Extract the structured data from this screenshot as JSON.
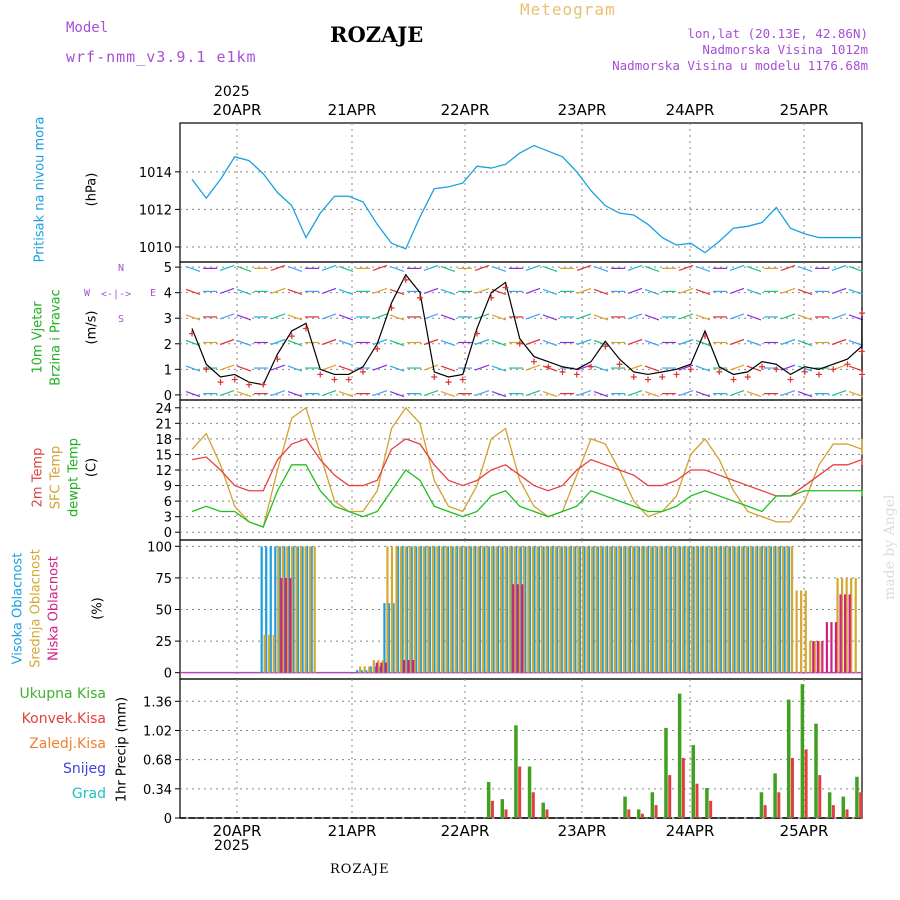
{
  "header": {
    "model_label": "Model",
    "model_name": "wrf-nmm_v3.9.1 e1km",
    "station": "ROZAJE",
    "product": "Meteogram",
    "lonlat": "lon,lat (20.13E, 42.86N)",
    "elevation": "Nadmorska Visina 1012m",
    "model_elevation": "Nadmorska Visina u modelu 1176.68m",
    "watermark": "made by Angel",
    "footer_station": "ROZAJE"
  },
  "dates": {
    "year": "2025",
    "labels": [
      "20APR",
      "21APR",
      "22APR",
      "23APR",
      "24APR",
      "25APR"
    ]
  },
  "colors": {
    "pressure": "#1aa0e0",
    "t2m": "#e84040",
    "sfc": "#d4a030",
    "dew": "#20c020",
    "high_cloud": "#1a9ee0",
    "mid_cloud": "#d4a830",
    "low_cloud": "#d02080",
    "total_precip": "#40a020",
    "conv_precip": "#e04040",
    "precip_bar": "#8a7a20",
    "wind_obs": "#000000",
    "wind_marks": "#e03030",
    "grid": "#888888"
  },
  "panels": {
    "pressure": {
      "label": "Pritisak na nivou mora",
      "unit": "(hPa)"
    },
    "wind": {
      "label1": "10m Vjetar",
      "label2": "Brzina i Pravac",
      "unit": "(m/s)",
      "compass": {
        "n": "N",
        "s": "S",
        "w": "W",
        "e": "E"
      }
    },
    "temp": {
      "label1": "2m Temp",
      "label2": "SFC Temp",
      "label3": "dewpt Temp",
      "unit": "(C)"
    },
    "cloud": {
      "label1": "Visoka Oblacnost",
      "label2": "Srednja Oblacnost",
      "label3": "Niska Oblacnost",
      "unit": "(%)"
    },
    "precip": {
      "legend": [
        "Ukupna Kisa",
        "Konvek.Kisa",
        "Zaledj.Kisa",
        "Snijeg",
        "Grad"
      ],
      "legend_colors": [
        "#40b030",
        "#e04040",
        "#f08030",
        "#4040e0",
        "#20c0c0"
      ],
      "unit": "1hr Precip (mm)"
    }
  },
  "chart_data": [
    {
      "type": "line",
      "title": "Pritisak na nivou mora",
      "ylabel": "(hPa)",
      "ylim": [
        1009.2,
        1016.6
      ],
      "yticks": [
        1010,
        1012,
        1014
      ],
      "x_hours": [
        0,
        3,
        6,
        9,
        12,
        15,
        18,
        21,
        24,
        27,
        30,
        33,
        36,
        39,
        42,
        45,
        48,
        51,
        54,
        57,
        60,
        63,
        66,
        69,
        72,
        75,
        78,
        81,
        84,
        87,
        90,
        93,
        96,
        99,
        102,
        105,
        108,
        111,
        114,
        117,
        120,
        123,
        126,
        129,
        132,
        135,
        138,
        141,
        144,
        147
      ],
      "series": [
        {
          "values": [
            1013.6,
            1012.6,
            1013.6,
            1014.8,
            1014.6,
            1013.9,
            1012.9,
            1012.2,
            1010.5,
            1011.8,
            1012.7,
            1012.7,
            1012.4,
            1011.2,
            1010.2,
            1009.9,
            1011.6,
            1013.1,
            1013.2,
            1013.4,
            1014.3,
            1014.2,
            1014.4,
            1015.0,
            1015.4,
            1015.1,
            1014.8,
            1014.0,
            1013.0,
            1012.2,
            1011.8,
            1011.7,
            1011.2,
            1010.5,
            1010.1,
            1010.2,
            1009.7,
            1010.3,
            1011.0,
            1011.1,
            1011.3,
            1012.1,
            1011.0,
            1010.7,
            1010.5,
            1010.5,
            1010.5,
            1010.5,
            1010.5,
            1010.5
          ]
        }
      ]
    },
    {
      "type": "line",
      "title": "10m Vjetar Brzina i Pravac",
      "ylabel": "(m/s)",
      "ylim": [
        -0.2,
        5.2
      ],
      "yticks": [
        0,
        1,
        2,
        3,
        4,
        5
      ],
      "x_hours": [
        0,
        3,
        6,
        9,
        12,
        15,
        18,
        21,
        24,
        27,
        30,
        33,
        36,
        39,
        42,
        45,
        48,
        51,
        54,
        57,
        60,
        63,
        66,
        69,
        72,
        75,
        78,
        81,
        84,
        87,
        90,
        93,
        96,
        99,
        102,
        105,
        108,
        111,
        114,
        117,
        120,
        123,
        126,
        129,
        132,
        135,
        138,
        141,
        144,
        147
      ],
      "series": [
        {
          "values": [
            2.6,
            1.2,
            0.7,
            0.8,
            0.5,
            0.4,
            1.6,
            2.5,
            2.8,
            1.0,
            0.8,
            0.8,
            1.1,
            2.0,
            3.6,
            4.7,
            4.0,
            0.9,
            0.7,
            0.8,
            2.6,
            4.0,
            4.4,
            2.2,
            1.5,
            1.3,
            1.1,
            1.0,
            1.3,
            2.1,
            1.4,
            0.9,
            0.8,
            0.9,
            1.0,
            1.2,
            2.5,
            1.1,
            0.8,
            0.9,
            1.3,
            1.2,
            0.8,
            1.1,
            1.0,
            1.2,
            1.4,
            1.9,
            3.4,
            1.0
          ]
        }
      ]
    },
    {
      "type": "line",
      "title": "2m Temp / SFC Temp / dewpt Temp",
      "ylabel": "(C)",
      "ylim": [
        -1.5,
        25.5
      ],
      "yticks": [
        0,
        3,
        6,
        9,
        12,
        15,
        18,
        21,
        24
      ],
      "x_hours": [
        0,
        3,
        6,
        9,
        12,
        15,
        18,
        21,
        24,
        27,
        30,
        33,
        36,
        39,
        42,
        45,
        48,
        51,
        54,
        57,
        60,
        63,
        66,
        69,
        72,
        75,
        78,
        81,
        84,
        87,
        90,
        93,
        96,
        99,
        102,
        105,
        108,
        111,
        114,
        117,
        120,
        123,
        126,
        129,
        132,
        135,
        138,
        141,
        144,
        147
      ],
      "series": [
        {
          "name": "2m Temp",
          "values": [
            14,
            14.5,
            12,
            9,
            8,
            8,
            14,
            17,
            18,
            14,
            11,
            9,
            9,
            10,
            16,
            18,
            17,
            13,
            10,
            9,
            10,
            12,
            13,
            11,
            9,
            8,
            9,
            12,
            14,
            13,
            12,
            11,
            9,
            9,
            10,
            12,
            12,
            11,
            10,
            9,
            8,
            7,
            7,
            9,
            11,
            13,
            13,
            14,
            13,
            13
          ]
        },
        {
          "name": "SFC Temp",
          "values": [
            16,
            19,
            13,
            5,
            2,
            1,
            12,
            22,
            24,
            15,
            6,
            4,
            4,
            8,
            20,
            24,
            21,
            10,
            5,
            4,
            9,
            18,
            20,
            10,
            5,
            3,
            4,
            11,
            18,
            17,
            12,
            6,
            3,
            4,
            7,
            15,
            18,
            14,
            8,
            4,
            3,
            2,
            2,
            6,
            13,
            17,
            17,
            16,
            18,
            15
          ]
        },
        {
          "name": "dewpt Temp",
          "values": [
            4,
            5,
            4,
            4,
            2,
            1,
            8,
            13,
            13,
            8,
            5,
            4,
            3,
            4,
            8,
            12,
            10,
            5,
            4,
            3,
            4,
            7,
            8,
            5,
            4,
            3,
            4,
            5,
            8,
            7,
            6,
            5,
            4,
            4,
            5,
            7,
            8,
            7,
            6,
            5,
            4,
            7,
            7,
            8,
            8,
            8,
            8,
            8,
            8,
            7
          ]
        }
      ]
    },
    {
      "type": "bar",
      "title": "Visoka / Srednja / Niska Oblacnost",
      "ylabel": "(%)",
      "ylim": [
        -5,
        105
      ],
      "yticks": [
        0,
        25,
        50,
        75,
        100
      ],
      "series": [
        {
          "name": "Visoka Oblacnost",
          "values": [
            0,
            0,
            0,
            0,
            0,
            0,
            100,
            100,
            100,
            100,
            0,
            0,
            0,
            2,
            5,
            55,
            100,
            100,
            100,
            100,
            100,
            100,
            100,
            100,
            100,
            100,
            100,
            100,
            100,
            100,
            100,
            100,
            100,
            100,
            100,
            100,
            100,
            100,
            100,
            100,
            100,
            100,
            100,
            100,
            100,
            0,
            0,
            0,
            0,
            0
          ]
        },
        {
          "name": "Srednja Oblacnost",
          "values": [
            0,
            0,
            0,
            0,
            0,
            0,
            30,
            100,
            100,
            100,
            0,
            0,
            0,
            5,
            10,
            100,
            100,
            100,
            100,
            100,
            100,
            100,
            100,
            100,
            100,
            100,
            100,
            100,
            100,
            100,
            100,
            100,
            100,
            100,
            100,
            100,
            100,
            100,
            100,
            100,
            100,
            100,
            100,
            100,
            100,
            65,
            25,
            0,
            75,
            75
          ]
        },
        {
          "name": "Niska Oblacnost",
          "values": [
            0,
            0,
            0,
            0,
            0,
            0,
            0,
            75,
            0,
            0,
            0,
            0,
            0,
            0,
            8,
            0,
            10,
            0,
            0,
            0,
            0,
            0,
            0,
            0,
            70,
            0,
            0,
            0,
            0,
            0,
            0,
            0,
            0,
            0,
            0,
            0,
            0,
            0,
            0,
            0,
            0,
            0,
            0,
            0,
            0,
            0,
            25,
            40,
            62,
            0
          ]
        }
      ]
    },
    {
      "type": "bar",
      "title": "1hr Precip",
      "ylabel": "1hr Precip (mm)",
      "ylim": [
        0,
        1.62
      ],
      "yticks": [
        0,
        0.34,
        0.68,
        1.02,
        1.36
      ],
      "series": [
        {
          "name": "Ukupna Kisa",
          "values": [
            0,
            0,
            0,
            0,
            0,
            0,
            0,
            0,
            0,
            0,
            0,
            0,
            0,
            0,
            0,
            0,
            0,
            0,
            0,
            0,
            0,
            0,
            0.42,
            0.22,
            1.08,
            0.6,
            0.18,
            0,
            0,
            0,
            0,
            0,
            0.25,
            0.1,
            0.3,
            1.05,
            1.45,
            0.85,
            0.35,
            0,
            0,
            0,
            0.3,
            0.52,
            1.38,
            1.56,
            1.1,
            0.3,
            0.25,
            0.48
          ]
        },
        {
          "name": "Konvek.Kisa",
          "values": [
            0,
            0,
            0,
            0,
            0,
            0,
            0,
            0,
            0,
            0,
            0,
            0,
            0,
            0,
            0,
            0,
            0,
            0,
            0,
            0,
            0,
            0,
            0.2,
            0.1,
            0.6,
            0.3,
            0.1,
            0,
            0,
            0,
            0,
            0,
            0.1,
            0.05,
            0.15,
            0.5,
            0.7,
            0.4,
            0.2,
            0,
            0,
            0,
            0.15,
            0.3,
            0.7,
            0.8,
            0.5,
            0.15,
            0.1,
            0.3
          ]
        }
      ]
    }
  ]
}
